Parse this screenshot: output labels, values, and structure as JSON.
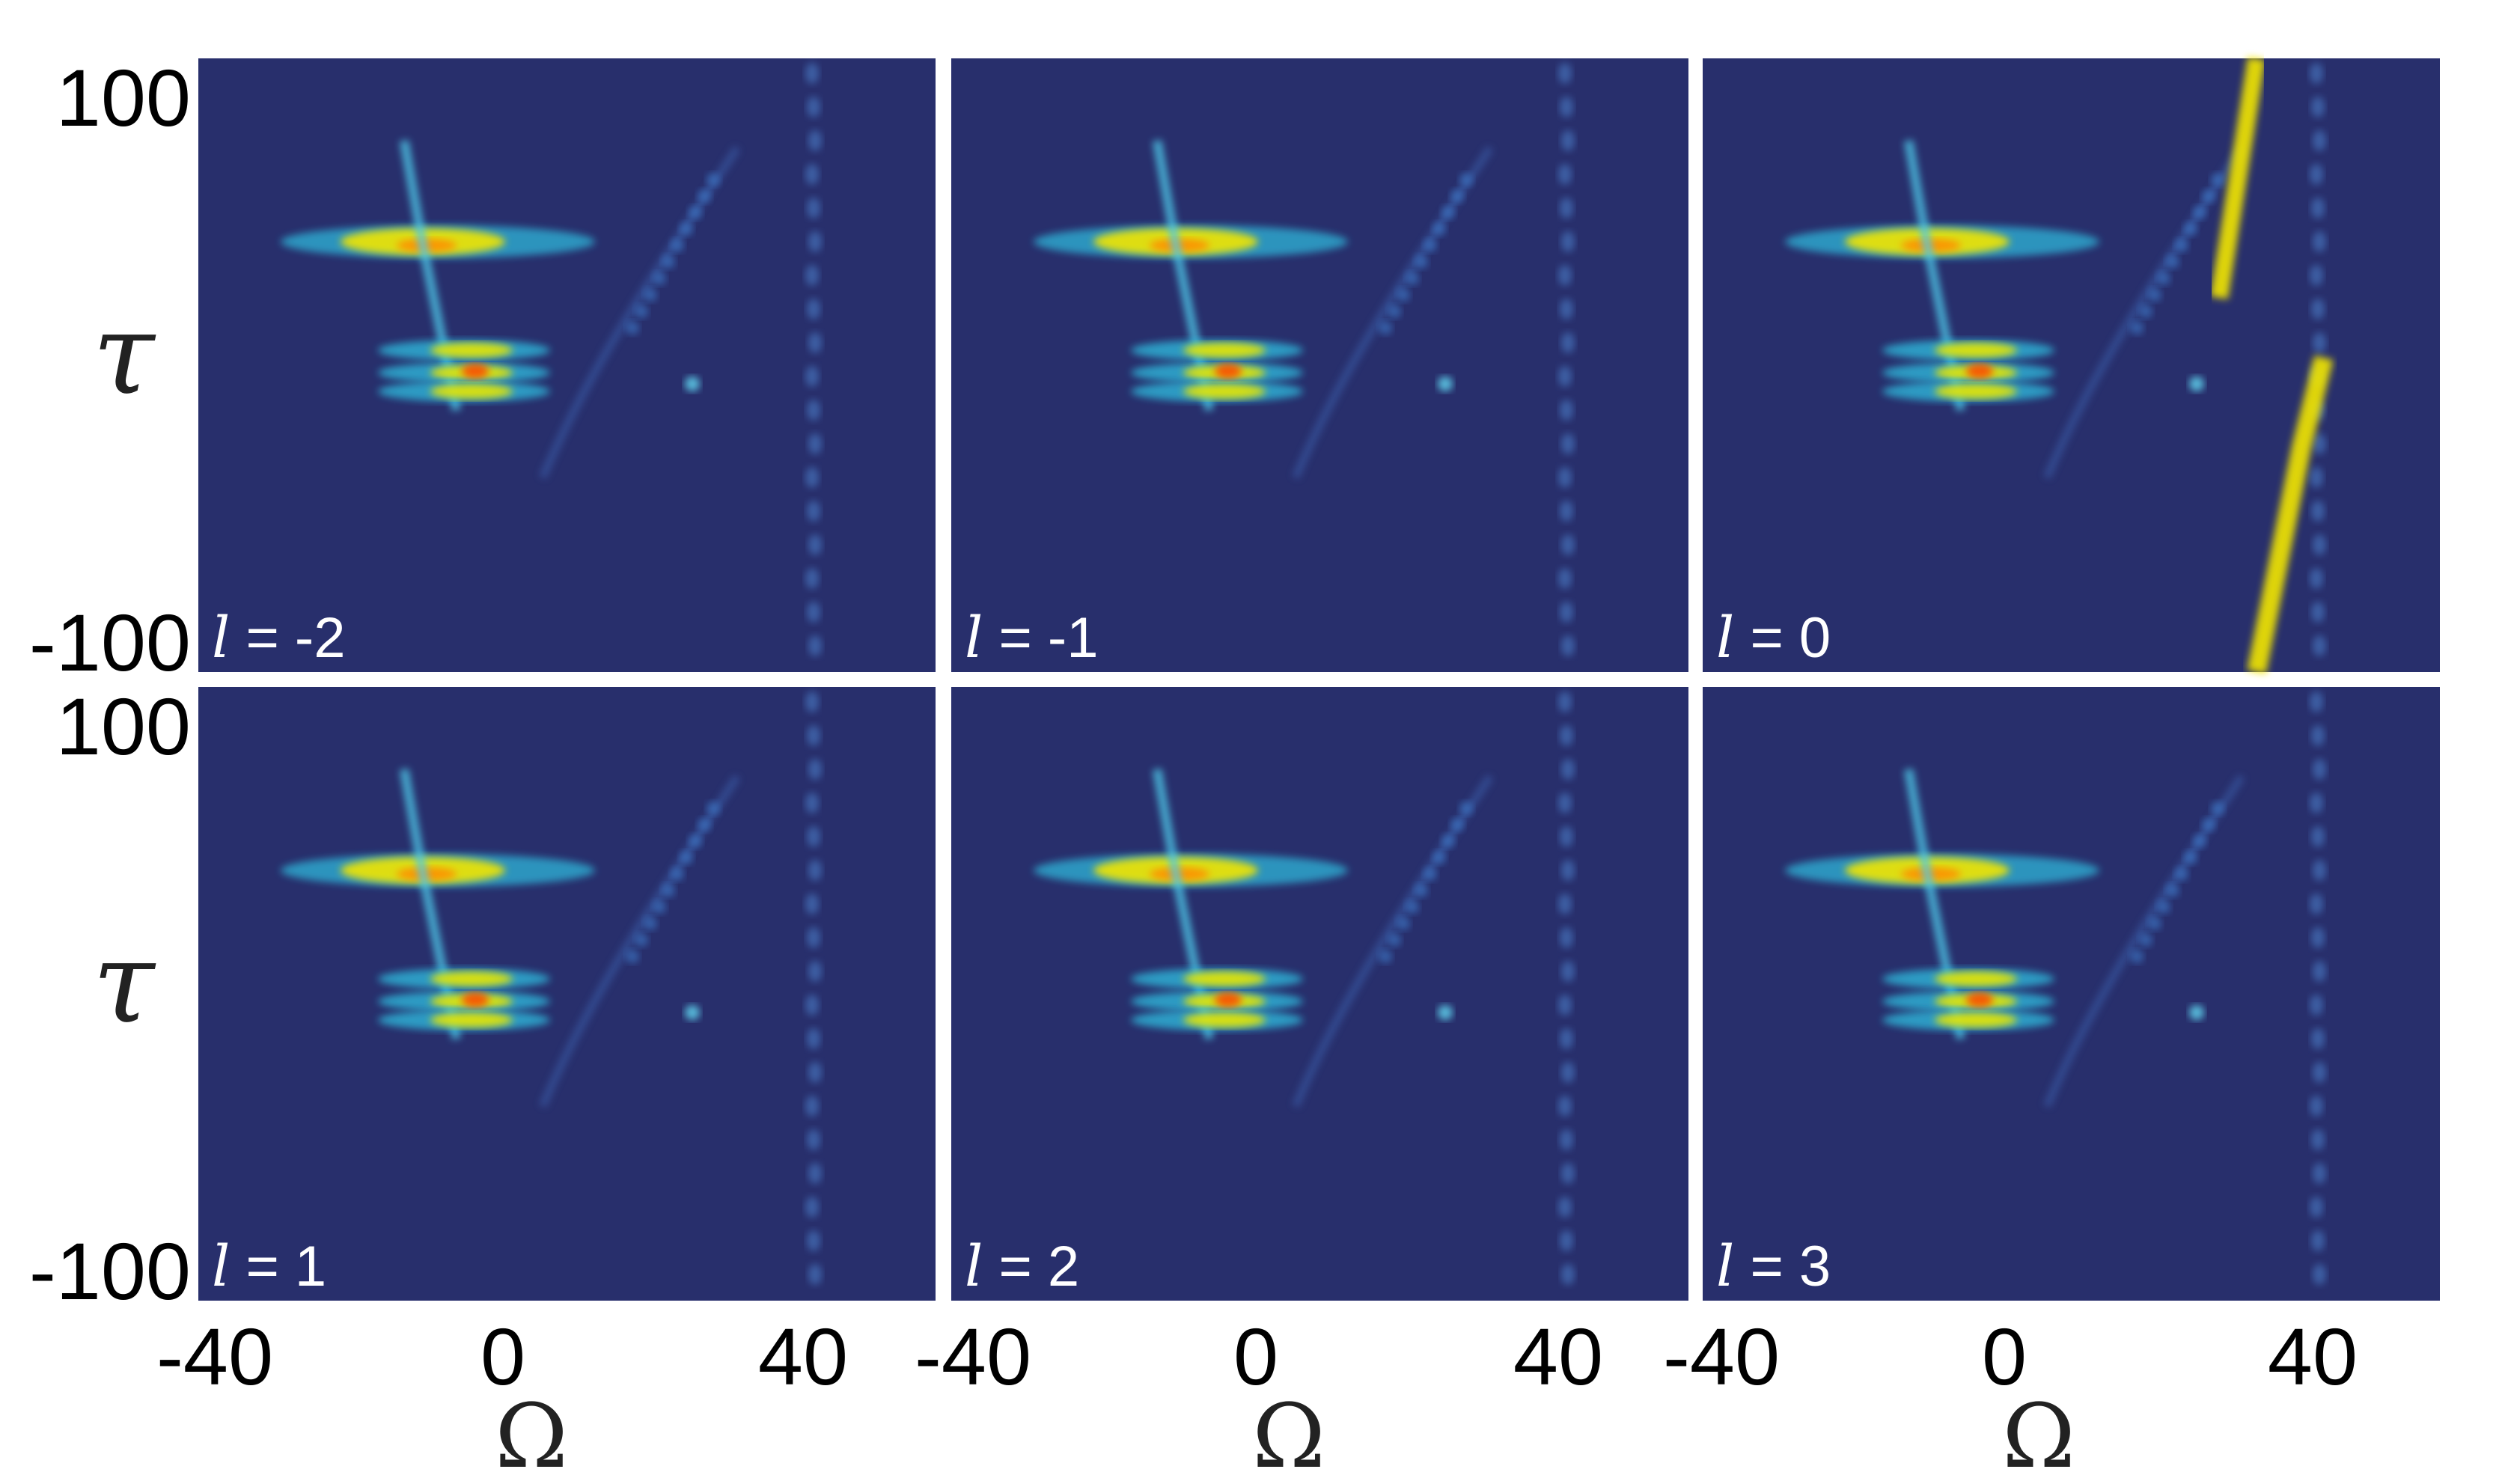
{
  "chart_data": {
    "type": "heatmap",
    "layout": "2x3 panel grid",
    "colormap": "jet",
    "background_color": "#282f6c",
    "x_axis": {
      "label": "Ω",
      "range": [
        -40,
        40
      ],
      "ticks": [
        "-40",
        "0",
        "40"
      ]
    },
    "y_axis": {
      "label": "τ",
      "range": [
        -100,
        100
      ],
      "ticks": [
        "100",
        "-100"
      ]
    },
    "panels": [
      {
        "label_symbol": "l",
        "label_value": "= -2",
        "x_range": [
          -40,
          40
        ],
        "y_range": [
          -100,
          100
        ]
      },
      {
        "label_symbol": "l",
        "label_value": "= -1",
        "x_range": [
          -40,
          40
        ],
        "y_range": [
          -100,
          100
        ]
      },
      {
        "label_symbol": "l",
        "label_value": "= 0",
        "x_range": [
          -40,
          40
        ],
        "y_range": [
          -100,
          100
        ]
      },
      {
        "label_symbol": "l",
        "label_value": "= 1",
        "x_range": [
          -40,
          40
        ],
        "y_range": [
          -100,
          100
        ]
      },
      {
        "label_symbol": "l",
        "label_value": "= 2",
        "x_range": [
          -40,
          40
        ],
        "y_range": [
          -100,
          100
        ]
      },
      {
        "label_symbol": "l",
        "label_value": "= 3",
        "x_range": [
          -40,
          40
        ],
        "y_range": [
          -100,
          100
        ]
      }
    ],
    "grid": false,
    "legend": "none"
  }
}
